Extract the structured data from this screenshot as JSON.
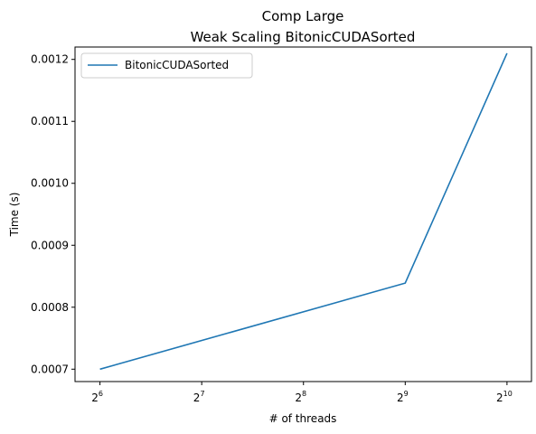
{
  "chart_data": {
    "type": "line",
    "title": "Comp Large",
    "subtitle": "Weak Scaling BitonicCUDASorted",
    "xlabel": "# of threads",
    "ylabel": "Time (s)",
    "x_scale": "log2",
    "x_ticks": [
      {
        "base": "2",
        "exp": "6",
        "value": 64
      },
      {
        "base": "2",
        "exp": "7",
        "value": 128
      },
      {
        "base": "2",
        "exp": "8",
        "value": 256
      },
      {
        "base": "2",
        "exp": "9",
        "value": 512
      },
      {
        "base": "2",
        "exp": "10",
        "value": 1024
      }
    ],
    "y_ticks": [
      {
        "label": "0.0007",
        "value": 0.0007
      },
      {
        "label": "0.0008",
        "value": 0.0008
      },
      {
        "label": "0.0009",
        "value": 0.0009
      },
      {
        "label": "0.0010",
        "value": 0.001
      },
      {
        "label": "0.0011",
        "value": 0.0011
      },
      {
        "label": "0.0012",
        "value": 0.0012
      }
    ],
    "ylim": [
      0.00068,
      0.00122
    ],
    "xlim": [
      54,
      1210
    ],
    "grid": false,
    "legend_position": "top-left",
    "series": [
      {
        "name": "BitonicCUDASorted",
        "color": "#1f77b4",
        "x": [
          64,
          512,
          1024
        ],
        "y": [
          0.0007,
          0.000839,
          0.00121
        ]
      }
    ]
  }
}
